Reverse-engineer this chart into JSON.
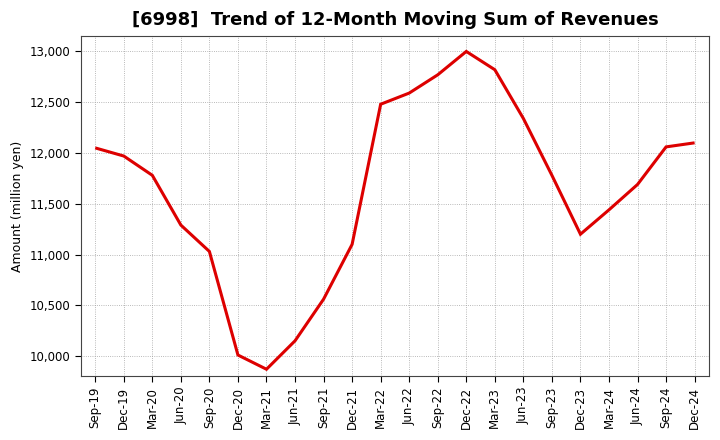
{
  "title": "[6998]  Trend of 12-Month Moving Sum of Revenues",
  "ylabel": "Amount (million yen)",
  "line_color": "#DD0000",
  "background_color": "#FFFFFF",
  "plot_bg_color": "#FFFFFF",
  "grid_color": "#999999",
  "ylim": [
    9800,
    13150
  ],
  "yticks": [
    10000,
    10500,
    11000,
    11500,
    12000,
    12500,
    13000
  ],
  "labels": [
    "Sep-19",
    "Dec-19",
    "Mar-20",
    "Jun-20",
    "Sep-20",
    "Dec-20",
    "Mar-21",
    "Jun-21",
    "Sep-21",
    "Dec-21",
    "Mar-22",
    "Jun-22",
    "Sep-22",
    "Dec-22",
    "Mar-23",
    "Jun-23",
    "Sep-23",
    "Dec-23",
    "Mar-24",
    "Jun-24",
    "Sep-24",
    "Dec-24"
  ],
  "values": [
    12050,
    11970,
    11780,
    11290,
    11030,
    10010,
    9870,
    10150,
    10560,
    11100,
    12480,
    12590,
    12770,
    13000,
    12820,
    12340,
    11780,
    11200,
    11440,
    11690,
    12060,
    12100
  ],
  "title_fontsize": 13,
  "axis_fontsize": 9,
  "tick_fontsize": 8.5
}
